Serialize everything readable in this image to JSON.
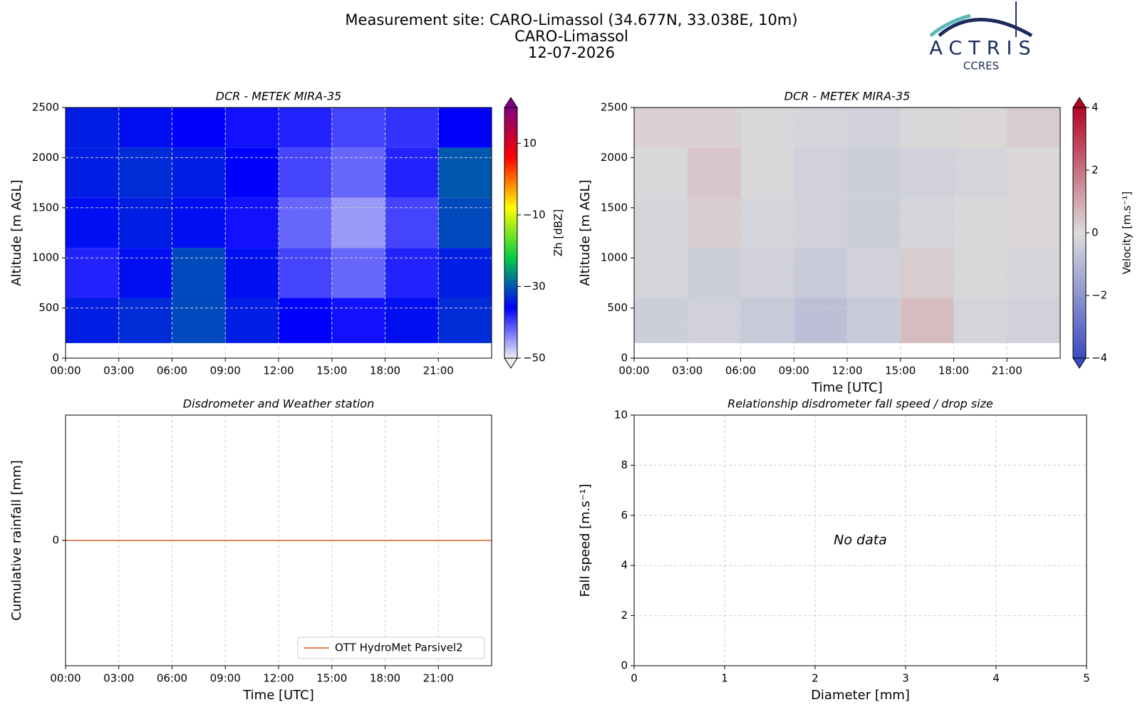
{
  "header": {
    "title": [
      "Measurement site: CARO-Limassol (34.677N, 33.038E, 10m)",
      "CARO-Limassol",
      "12-07-2026"
    ],
    "logo": "ACTRIS",
    "logo_sub": "CCRES"
  },
  "chart_data": [
    {
      "type": "heatmap",
      "title": "DCR - METEK MIRA-35",
      "ylabel": "Altitude [m AGL]",
      "x": [
        0,
        3,
        6,
        9,
        12,
        15,
        18,
        21,
        24
      ],
      "y": [
        150,
        600,
        1100,
        1600,
        2100,
        2500
      ],
      "z": [
        [
          -34,
          -33,
          -31,
          -34,
          -36,
          -37,
          -35,
          -33
        ],
        [
          -38,
          -35,
          -31,
          -35,
          -40,
          -42,
          -38,
          -34
        ],
        [
          -35,
          -34,
          -35,
          -37,
          -42,
          -45,
          -40,
          -31
        ],
        [
          -34,
          -33,
          -34,
          -36,
          -40,
          -42,
          -38,
          -30
        ],
        [
          -34,
          -35,
          -36,
          -37,
          -38,
          -40,
          -39,
          -36
        ]
      ],
      "xlim": [
        0,
        24
      ],
      "xticks": [
        {
          "value": 0,
          "label": "00:00"
        },
        {
          "value": 3,
          "label": "03:00"
        },
        {
          "value": 6,
          "label": "06:00"
        },
        {
          "value": 9,
          "label": "09:00"
        },
        {
          "value": 12,
          "label": "12:00"
        },
        {
          "value": 15,
          "label": "15:00"
        },
        {
          "value": 18,
          "label": "18:00"
        },
        {
          "value": 21,
          "label": "21:00"
        }
      ],
      "ylim": [
        0,
        2500
      ],
      "yticks": [
        0,
        500,
        1000,
        1500,
        2000,
        2500
      ],
      "grid": true,
      "colorbar": {
        "label": "Zh [dBZ]",
        "lim": [
          -50,
          20
        ],
        "ticks": [
          {
            "value": -50,
            "label": "−50"
          },
          {
            "value": -30,
            "label": "−30"
          },
          {
            "value": -10,
            "label": "−10"
          },
          10
        ],
        "colors": [
          "#eeeef4",
          "#0000ff",
          "#00cc44",
          "#ffff00",
          "#ff0000",
          "#800080"
        ]
      }
    },
    {
      "type": "heatmap",
      "title": "DCR - METEK MIRA-35",
      "ylabel": "Altitude [m AGL]",
      "xlabel": "Time [UTC]",
      "x": [
        0,
        3,
        6,
        9,
        12,
        15,
        18,
        21,
        24
      ],
      "y": [
        150,
        600,
        1100,
        1600,
        2100,
        2500
      ],
      "z": [
        [
          -0.4,
          -0.3,
          -0.5,
          -0.8,
          -0.5,
          0.6,
          -0.2,
          -0.3
        ],
        [
          -0.2,
          -0.4,
          -0.3,
          -0.5,
          -0.3,
          0.3,
          -0.1,
          -0.2
        ],
        [
          -0.2,
          0.3,
          -0.2,
          -0.3,
          -0.4,
          -0.2,
          -0.1,
          0.1
        ],
        [
          -0.1,
          0.4,
          -0.1,
          -0.3,
          -0.4,
          -0.3,
          -0.2,
          0.1
        ],
        [
          0.2,
          0.2,
          -0.1,
          -0.2,
          -0.3,
          -0.1,
          0.1,
          0.3
        ]
      ],
      "xlim": [
        0,
        24
      ],
      "xticks": [
        {
          "value": 0,
          "label": "00:00"
        },
        {
          "value": 3,
          "label": "03:00"
        },
        {
          "value": 6,
          "label": "06:00"
        },
        {
          "value": 9,
          "label": "09:00"
        },
        {
          "value": 12,
          "label": "12:00"
        },
        {
          "value": 15,
          "label": "15:00"
        },
        {
          "value": 18,
          "label": "18:00"
        },
        {
          "value": 21,
          "label": "21:00"
        }
      ],
      "ylim": [
        0,
        2500
      ],
      "yticks": [
        0,
        500,
        1000,
        1500,
        2000,
        2500
      ],
      "grid": true,
      "colorbar": {
        "label": "Velocity [m.s⁻¹]",
        "lim": [
          -4,
          4
        ],
        "ticks": [
          {
            "value": -4,
            "label": "−4"
          },
          {
            "value": -2,
            "label": "−2"
          },
          0,
          2,
          4
        ],
        "colors": [
          "#3b4cc0",
          "#dcdcdc",
          "#b40426"
        ]
      }
    },
    {
      "type": "line",
      "title": "Disdrometer and Weather station",
      "ylabel": "Cumulative rainfall [mm]",
      "xlabel": "Time [UTC]",
      "x": [
        0,
        24
      ],
      "series": [
        {
          "name": "OTT HydroMet Parsivel2",
          "color": "#e8865a",
          "values": [
            0,
            0
          ]
        }
      ],
      "xlim": [
        0,
        24
      ],
      "xticks": [
        {
          "value": 0,
          "label": "00:00"
        },
        {
          "value": 3,
          "label": "03:00"
        },
        {
          "value": 6,
          "label": "06:00"
        },
        {
          "value": 9,
          "label": "09:00"
        },
        {
          "value": 12,
          "label": "12:00"
        },
        {
          "value": 15,
          "label": "15:00"
        },
        {
          "value": 18,
          "label": "18:00"
        },
        {
          "value": 21,
          "label": "21:00"
        }
      ],
      "ylim": [
        -0.055,
        0.055
      ],
      "yticks": [
        0
      ],
      "grid": true,
      "legend": "lower right"
    },
    {
      "type": "scatter",
      "title": "Relationship disdrometer fall speed / drop size",
      "ylabel": "Fall speed [m.s⁻¹]",
      "xlabel": "Diameter [mm]",
      "x": [],
      "values": [],
      "annotation": "No data",
      "xlim": [
        0,
        5
      ],
      "xticks": [
        0,
        1,
        2,
        3,
        4,
        5
      ],
      "ylim": [
        0,
        10
      ],
      "yticks": [
        0,
        2,
        4,
        6,
        8,
        10
      ],
      "grid": true
    }
  ]
}
